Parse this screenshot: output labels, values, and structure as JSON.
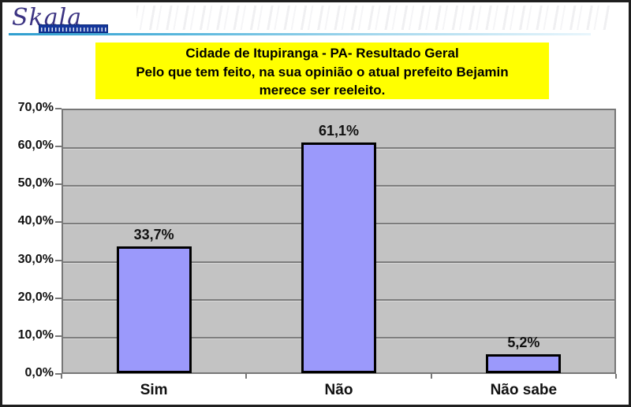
{
  "brand": {
    "name": "Skala"
  },
  "header": {
    "title_lines": [
      "Cidade de Itupiranga - PA- Resultado Geral",
      "Pelo que tem feito, na sua opinião o atual prefeito Bejamin",
      "merece ser reeleito."
    ],
    "title_bg": "#ffff00"
  },
  "chart_data": {
    "type": "bar",
    "title": "Cidade de Itupiranga - PA- Resultado Geral — Pelo que tem feito, na sua opinião o atual prefeito Bejamin merece ser reeleito.",
    "categories": [
      "Sim",
      "Não",
      "Não sabe"
    ],
    "values": [
      33.7,
      61.1,
      5.2
    ],
    "value_labels": [
      "33,7%",
      "61,1%",
      "5,2%"
    ],
    "xlabel": "",
    "ylabel": "",
    "ylim": [
      0,
      70
    ],
    "yticks": [
      0,
      10,
      20,
      30,
      40,
      50,
      60,
      70
    ],
    "ytick_labels": [
      "0,0%",
      "10,0%",
      "20,0%",
      "30,0%",
      "40,0%",
      "50,0%",
      "60,0%",
      "70,0%"
    ],
    "grid": true,
    "legend": false,
    "colors": {
      "plot_bg": "#c3c3c3",
      "gridline": "#7d7d7d",
      "bar_fill": "#9b99fb",
      "bar_border": "#000000"
    }
  }
}
